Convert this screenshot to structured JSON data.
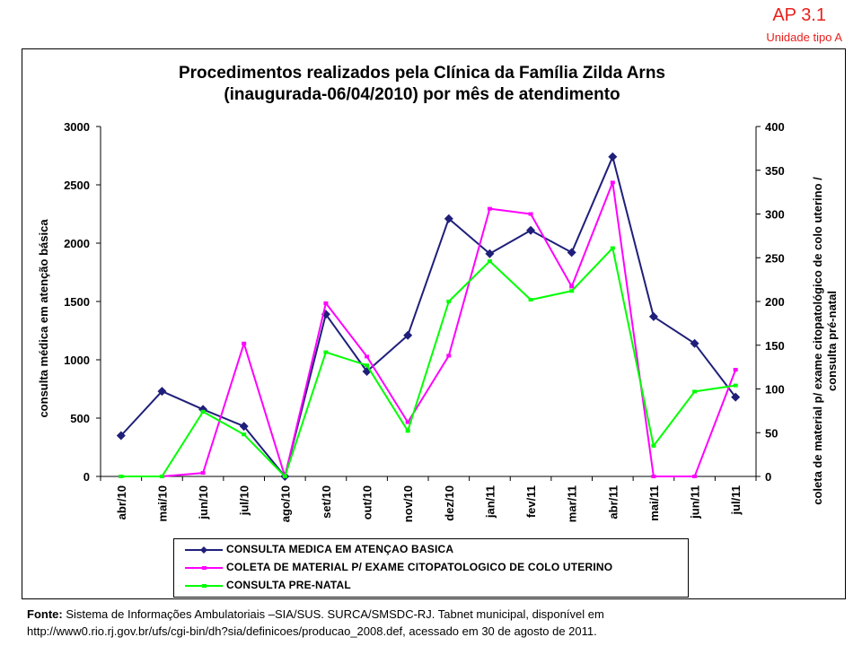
{
  "header": {
    "ap_label": "AP 3.1",
    "unit_label": "Unidade tipo A"
  },
  "chart_data": {
    "type": "line",
    "title_line1": "Procedimentos realizados pela Clínica da Família Zilda Arns",
    "title_line2": "(inaugurada-06/04/2010)  por mês de atendimento",
    "ylabel": "consulta médica em atenção básica",
    "y2label_line1": "coleta de material p/ exame citopatológico de colo uterino /",
    "y2label_line2": "consulta  pré-natal",
    "ylim": [
      0,
      3000
    ],
    "y2lim": [
      0,
      400
    ],
    "yticks": [
      "0",
      "500",
      "1000",
      "1500",
      "2000",
      "2500",
      "3000"
    ],
    "y2ticks": [
      "0",
      "50",
      "100",
      "150",
      "200",
      "250",
      "300",
      "350",
      "400"
    ],
    "categories": [
      "abr/10",
      "mai/10",
      "jun/10",
      "jul/10",
      "ago/10",
      "set/10",
      "out/10",
      "nov/10",
      "dez/10",
      "jan/11",
      "fev/11",
      "mar/11",
      "abr/11",
      "mai/11",
      "jun/11",
      "jul/11"
    ],
    "grid": false,
    "legend_position": "bottom",
    "series": [
      {
        "name": "CONSULTA MEDICA EM ATENÇAO BASICA",
        "axis": "left",
        "color": "#1f1f7a",
        "marker": "diamond",
        "values": [
          350,
          730,
          575,
          430,
          0,
          1390,
          900,
          1210,
          2210,
          1910,
          2110,
          1920,
          2740,
          1370,
          1140,
          680
        ]
      },
      {
        "name": "COLETA DE MATERIAL P/ EXAME CITOPATOLOGICO DE COLO UTERINO",
        "axis": "right",
        "color": "#ff00ff",
        "marker": "dash",
        "values": [
          0,
          0,
          4,
          152,
          0,
          198,
          137,
          62,
          138,
          306,
          300,
          217,
          336,
          0,
          0,
          122
        ]
      },
      {
        "name": "CONSULTA PRE-NATAL",
        "axis": "right",
        "color": "#00ff00",
        "marker": "dash",
        "values": [
          0,
          0,
          74,
          48,
          0,
          142,
          127,
          52,
          200,
          246,
          202,
          212,
          261,
          35,
          97,
          104
        ]
      }
    ]
  },
  "source": {
    "label": "Fonte:",
    "text_line1": " Sistema de Informações Ambulatoriais –SIA/SUS. SURCA/SMSDC-RJ. Tabnet municipal, disponível em",
    "text_line2": "http://www0.rio.rj.gov.br/ufs/cgi-bin/dh?sia/definicoes/producao_2008.def,  acessado em 30 de agosto de 2011."
  }
}
